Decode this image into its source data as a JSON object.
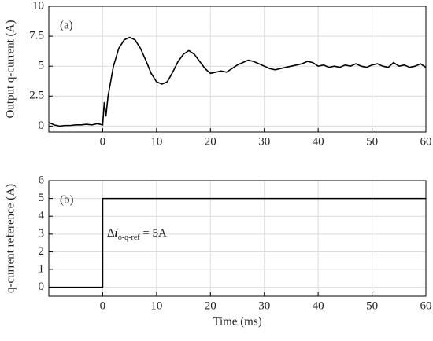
{
  "chart_data": [
    {
      "type": "line",
      "label": "(a)",
      "y_label": "Output q-current (A)",
      "xlim": [
        -10,
        60
      ],
      "xticks": [
        0,
        10,
        20,
        30,
        40,
        50,
        60
      ],
      "ylim": [
        -0.5,
        10
      ],
      "yticks": [
        0,
        2.5,
        5,
        7.5,
        10
      ],
      "grid": true,
      "x": [
        -10,
        -9,
        -8,
        -7,
        -6,
        -5,
        -4,
        -3,
        -2,
        -1,
        0,
        0.3,
        0.6,
        1,
        2,
        3,
        4,
        5,
        6,
        7,
        8,
        9,
        10,
        11,
        12,
        13,
        14,
        15,
        16,
        17,
        18,
        19,
        20,
        21,
        22,
        23,
        24,
        25,
        26,
        27,
        28,
        29,
        30,
        31,
        32,
        33,
        34,
        35,
        36,
        37,
        38,
        39,
        40,
        41,
        42,
        43,
        44,
        45,
        46,
        47,
        48,
        49,
        50,
        51,
        52,
        53,
        54,
        55,
        56,
        57,
        58,
        59,
        60
      ],
      "series": [
        {
          "color": "#000000",
          "values": [
            0.3,
            0.1,
            0.0,
            0.05,
            0.05,
            0.1,
            0.1,
            0.15,
            0.1,
            0.2,
            0.1,
            2.0,
            0.8,
            2.5,
            5.0,
            6.5,
            7.2,
            7.4,
            7.2,
            6.5,
            5.5,
            4.4,
            3.7,
            3.5,
            3.7,
            4.5,
            5.4,
            6.0,
            6.3,
            6.0,
            5.4,
            4.8,
            4.4,
            4.5,
            4.6,
            4.5,
            4.8,
            5.1,
            5.3,
            5.5,
            5.4,
            5.2,
            5.0,
            4.8,
            4.7,
            4.8,
            4.9,
            5.0,
            5.1,
            5.2,
            5.4,
            5.3,
            5.0,
            5.1,
            4.9,
            5.0,
            4.9,
            5.1,
            5.0,
            5.2,
            5.0,
            4.9,
            5.1,
            5.2,
            5.0,
            4.9,
            5.3,
            5.0,
            5.1,
            4.9,
            5.0,
            5.2,
            4.9
          ]
        }
      ]
    },
    {
      "type": "line",
      "label": "(b)",
      "y_label": "q-current reference (A)",
      "x_label": "Time (ms)",
      "xlim": [
        -10,
        60
      ],
      "xticks": [
        0,
        10,
        20,
        30,
        40,
        50,
        60
      ],
      "ylim": [
        -0.5,
        6
      ],
      "yticks": [
        0,
        1,
        2,
        3,
        4,
        5,
        6
      ],
      "grid": true,
      "annotation": {
        "symbol": "Δ",
        "variable": "i",
        "subscript": "o-q-ref",
        "text": " = 5A"
      },
      "x": [
        -10,
        0,
        0,
        60
      ],
      "series": [
        {
          "color": "#000000",
          "values": [
            0,
            0,
            5,
            5
          ]
        }
      ]
    }
  ]
}
